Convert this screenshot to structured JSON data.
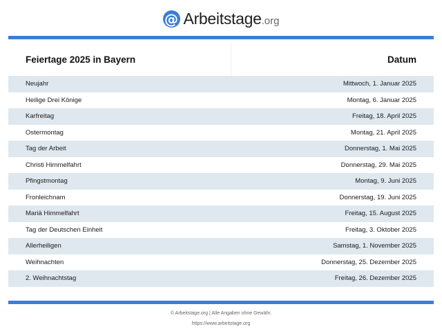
{
  "logo": {
    "icon": "at-sign-icon",
    "icon_glyph": "@",
    "name": "Arbeitstage",
    "tld": ".org",
    "color": "#3a7fd5"
  },
  "accent_color": "#3a7fd5",
  "row_stripe_color": "#dfe8ef",
  "table": {
    "title": "Feiertage 2025 in Bayern",
    "date_header": "Datum",
    "rows": [
      {
        "name": "Neujahr",
        "date": "Mittwoch, 1. Januar 2025"
      },
      {
        "name": "Heilige Drei Könige",
        "date": "Montag, 6. Januar 2025"
      },
      {
        "name": "Karfreitag",
        "date": "Freitag, 18. April 2025"
      },
      {
        "name": "Ostermontag",
        "date": "Montag, 21. April 2025"
      },
      {
        "name": "Tag der Arbeit",
        "date": "Donnerstag, 1. Mai 2025"
      },
      {
        "name": "Christi Himmelfahrt",
        "date": "Donnerstag, 29. Mai 2025"
      },
      {
        "name": "Pfingstmontag",
        "date": "Montag, 9. Juni 2025"
      },
      {
        "name": "Fronleichnam",
        "date": "Donnerstag, 19. Juni 2025"
      },
      {
        "name": "Mariä Himmelfahrt",
        "date": "Freitag, 15. August 2025"
      },
      {
        "name": "Tag der Deutschen Einheit",
        "date": "Freitag, 3. Oktober 2025"
      },
      {
        "name": "Allerheiligen",
        "date": "Samstag, 1. November 2025"
      },
      {
        "name": "Weihnachten",
        "date": "Donnerstag, 25. Dezember 2025"
      },
      {
        "name": "2. Weihnachtstag",
        "date": "Freitag, 26. Dezember 2025"
      }
    ]
  },
  "footer": {
    "copyright": "© Arbeitstage.org | Alle Angaben ohne Gewähr.",
    "url": "https://www.arbeitstage.org"
  }
}
